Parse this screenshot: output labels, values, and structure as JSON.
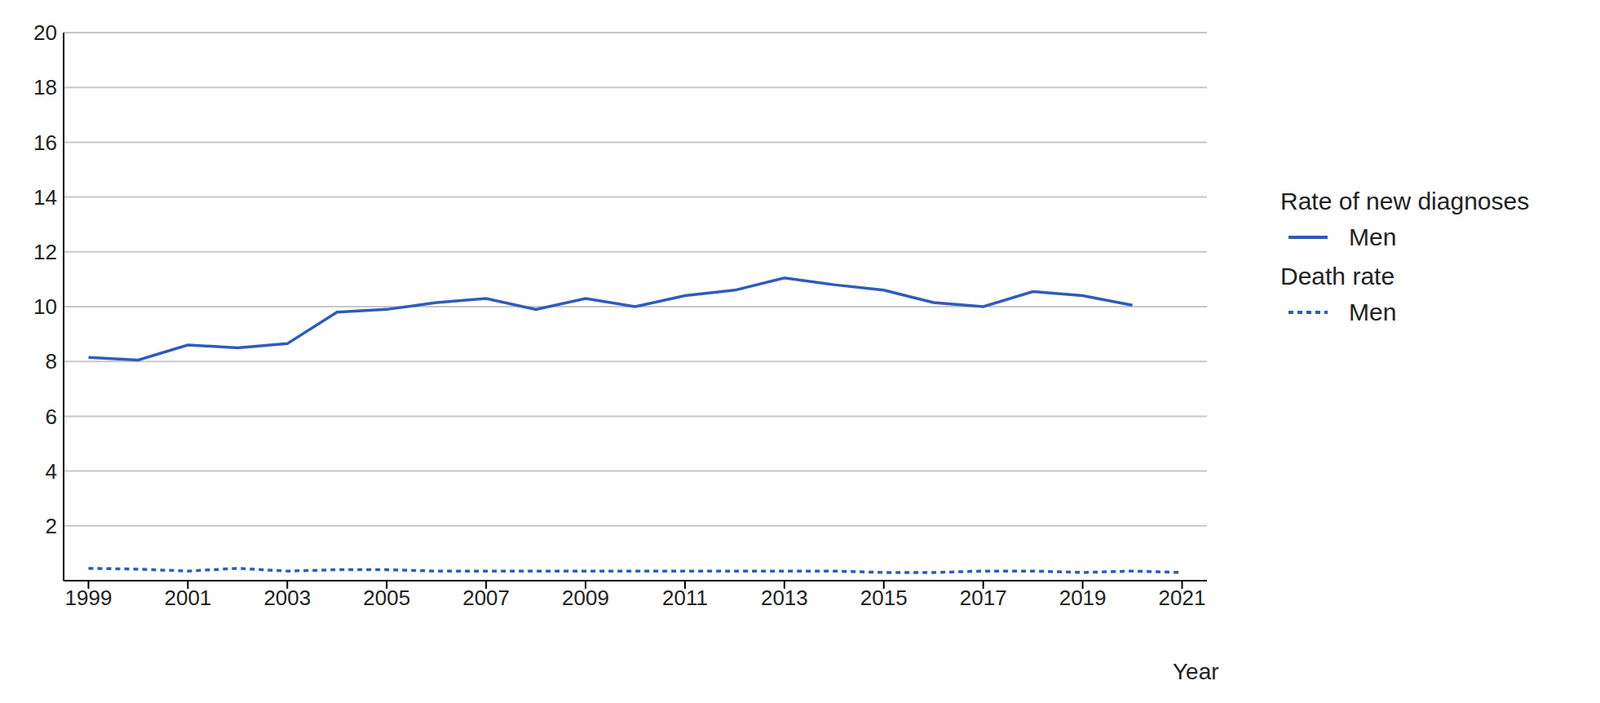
{
  "chart_data": {
    "type": "line",
    "x_label": "Year",
    "x": [
      1999,
      2000,
      2001,
      2002,
      2003,
      2004,
      2005,
      2006,
      2007,
      2008,
      2009,
      2010,
      2011,
      2012,
      2013,
      2014,
      2015,
      2016,
      2017,
      2018,
      2019,
      2020,
      2021
    ],
    "xlim": [
      1998.5,
      2021.5
    ],
    "xticks": [
      1999,
      2001,
      2003,
      2005,
      2007,
      2009,
      2011,
      2013,
      2015,
      2017,
      2019,
      2021
    ],
    "ylim": [
      0,
      20
    ],
    "yticks": [
      2,
      4,
      6,
      8,
      10,
      12,
      14,
      16,
      18,
      20
    ],
    "grid": true,
    "legend": "right",
    "series": [
      {
        "name": "Men",
        "legend_title": "Rate of new diagnoses",
        "color": "#2e5cb8",
        "line_style": "solid",
        "values": [
          8.15,
          8.05,
          8.6,
          8.5,
          8.65,
          9.8,
          9.9,
          10.15,
          10.3,
          9.9,
          10.3,
          10.0,
          10.4,
          10.6,
          11.05,
          10.8,
          10.6,
          10.15,
          10.0,
          10.55,
          10.4,
          10.05,
          null
        ]
      },
      {
        "name": "Men",
        "legend_title": "Death rate",
        "color": "#2e5cb8",
        "line_style": "dashed",
        "values": [
          0.45,
          0.42,
          0.35,
          0.45,
          0.35,
          0.4,
          0.4,
          0.35,
          0.35,
          0.35,
          0.35,
          0.35,
          0.35,
          0.35,
          0.35,
          0.35,
          0.3,
          0.3,
          0.35,
          0.35,
          0.3,
          0.35,
          0.3
        ]
      }
    ]
  }
}
